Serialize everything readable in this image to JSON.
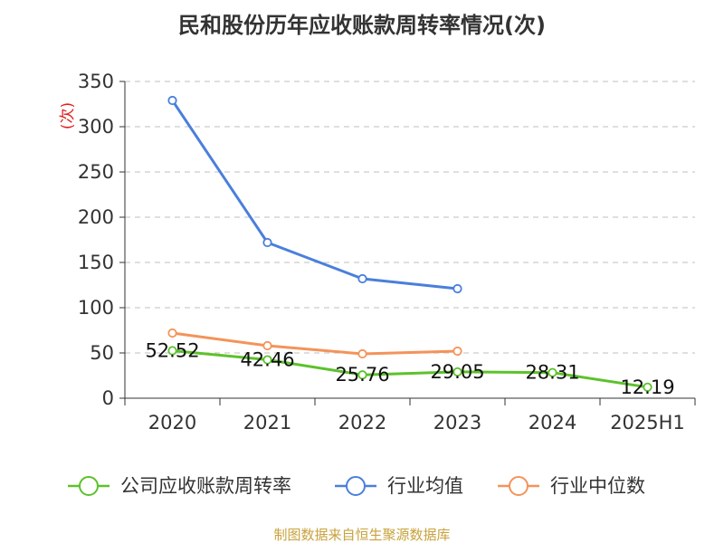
{
  "chart_data": {
    "type": "line",
    "title": "民和股份历年应收账款周转率情况(次)",
    "ylabel": "(次)",
    "xlabel": "",
    "categories": [
      "2020",
      "2021",
      "2022",
      "2023",
      "2024",
      "2025H1"
    ],
    "ylim": [
      0,
      350
    ],
    "yticks": [
      0,
      50,
      100,
      150,
      200,
      250,
      300,
      350
    ],
    "grid": "horizontal dashed",
    "legend_position": "bottom",
    "series": [
      {
        "name": "公司应收账款周转率",
        "color": "#5cc22a",
        "values": [
          52.52,
          42.46,
          25.76,
          29.05,
          28.31,
          12.19
        ],
        "labels": [
          "52.52",
          "42.46",
          "25.76",
          "29.05",
          "28.31",
          "12.19"
        ]
      },
      {
        "name": "行业均值",
        "color": "#4a7fdc",
        "values": [
          329,
          172,
          132,
          121,
          null,
          null
        ]
      },
      {
        "name": "行业中位数",
        "color": "#f4935a",
        "values": [
          72,
          58,
          49,
          52,
          null,
          null
        ]
      }
    ]
  },
  "source": "制图数据来自恒生聚源数据库"
}
